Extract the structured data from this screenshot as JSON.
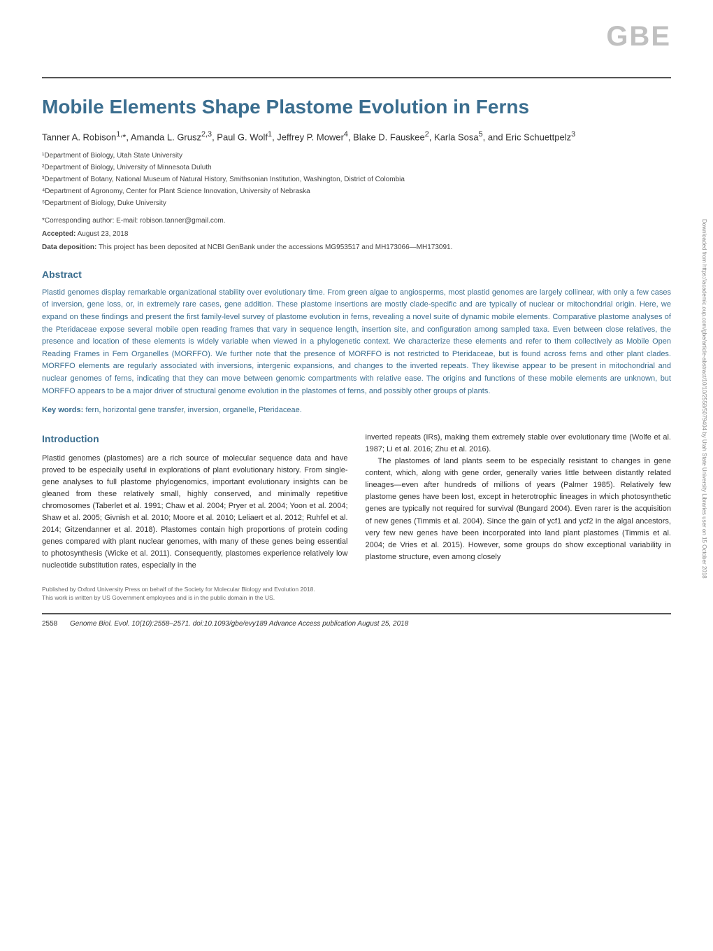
{
  "journal": {
    "logo": "GBE"
  },
  "article": {
    "title": "Mobile Elements Shape Plastome Evolution in Ferns",
    "authors_html": "Tanner A. Robison<sup>1,</sup>*, Amanda L. Grusz<sup>2,3</sup>, Paul G. Wolf<sup>1</sup>, Jeffrey P. Mower<sup>4</sup>, Blake D. Fauskee<sup>2</sup>, Karla Sosa<sup>5</sup>, and Eric Schuettpelz<sup>3</sup>",
    "affiliations": [
      "¹Department of Biology, Utah State University",
      "²Department of Biology, University of Minnesota Duluth",
      "³Department of Botany, National Museum of Natural History, Smithsonian Institution, Washington, District of Colombia",
      "⁴Department of Agronomy, Center for Plant Science Innovation, University of Nebraska",
      "⁵Department of Biology, Duke University"
    ],
    "corresponding": "*Corresponding author: E-mail: robison.tanner@gmail.com.",
    "accepted_label": "Accepted:",
    "accepted_date": "August 23, 2018",
    "data_dep_label": "Data deposition:",
    "data_dep_text": "This project has been deposited at NCBI GenBank under the accessions MG953517 and MH173066—MH173091."
  },
  "abstract": {
    "heading": "Abstract",
    "text": "Plastid genomes display remarkable organizational stability over evolutionary time. From green algae to angiosperms, most plastid genomes are largely collinear, with only a few cases of inversion, gene loss, or, in extremely rare cases, gene addition. These plastome insertions are mostly clade-specific and are typically of nuclear or mitochondrial origin. Here, we expand on these findings and present the first family-level survey of plastome evolution in ferns, revealing a novel suite of dynamic mobile elements. Comparative plastome analyses of the Pteridaceae expose several mobile open reading frames that vary in sequence length, insertion site, and configuration among sampled taxa. Even between close relatives, the presence and location of these elements is widely variable when viewed in a phylogenetic context. We characterize these elements and refer to them collectively as Mobile Open Reading Frames in Fern Organelles (MORFFO). We further note that the presence of MORFFO is not restricted to Pteridaceae, but is found across ferns and other plant clades. MORFFO elements are regularly associated with inversions, intergenic expansions, and changes to the inverted repeats. They likewise appear to be present in mitochondrial and nuclear genomes of ferns, indicating that they can move between genomic compartments with relative ease. The origins and functions of these mobile elements are unknown, but MORFFO appears to be a major driver of structural genome evolution in the plastomes of ferns, and possibly other groups of plants.",
    "keywords_label": "Key words:",
    "keywords": "fern, horizontal gene transfer, inversion, organelle, Pteridaceae."
  },
  "introduction": {
    "heading": "Introduction",
    "col1": "Plastid genomes (plastomes) are a rich source of molecular sequence data and have proved to be especially useful in explorations of plant evolutionary history. From single-gene analyses to full plastome phylogenomics, important evolutionary insights can be gleaned from these relatively small, highly conserved, and minimally repetitive chromosomes (Taberlet et al. 1991; Chaw et al. 2004; Pryer et al. 2004; Yoon et al. 2004; Shaw et al. 2005; Givnish et al. 2010; Moore et al. 2010; Leliaert et al. 2012; Ruhfel et al. 2014; Gitzendanner et al. 2018). Plastomes contain high proportions of protein coding genes compared with plant nuclear genomes, with many of these genes being essential to photosynthesis (Wicke et al. 2011). Consequently, plastomes experience relatively low nucleotide substitution rates, especially in the",
    "col2_part1": "inverted repeats (IRs), making them extremely stable over evolutionary time (Wolfe et al. 1987; Li et al. 2016; Zhu et al. 2016).",
    "col2_part2": "The plastomes of land plants seem to be especially resistant to changes in gene content, which, along with gene order, generally varies little between distantly related lineages—even after hundreds of millions of years (Palmer 1985). Relatively few plastome genes have been lost, except in heterotrophic lineages in which photosynthetic genes are typically not required for survival (Bungard 2004). Even rarer is the acquisition of new genes (Timmis et al. 2004). Since the gain of ycf1 and ycf2 in the algal ancestors, very few new genes have been incorporated into land plant plastomes (Timmis et al. 2004; de Vries et al. 2015). However, some groups do show exceptional variability in plastome structure, even among closely"
  },
  "footer": {
    "note1": "Published by Oxford University Press on behalf of the Society for Molecular Biology and Evolution 2018.",
    "note2": "This work is written by US Government employees and is in the public domain in the US.",
    "page": "2558",
    "citation": "Genome Biol. Evol. 10(10):2558–2571. doi:10.1093/gbe/evy189 Advance Access publication August 25, 2018"
  },
  "sidebar": {
    "text": "Downloaded from https://academic.oup.com/gbe/article-abstract/10/10/2558/5079404 by Utah State University Libraries user on 15 October 2018"
  },
  "colors": {
    "heading_blue": "#3b6e8f",
    "logo_gray": "#c0c0c0",
    "divider": "#555555",
    "body_text": "#333333"
  }
}
